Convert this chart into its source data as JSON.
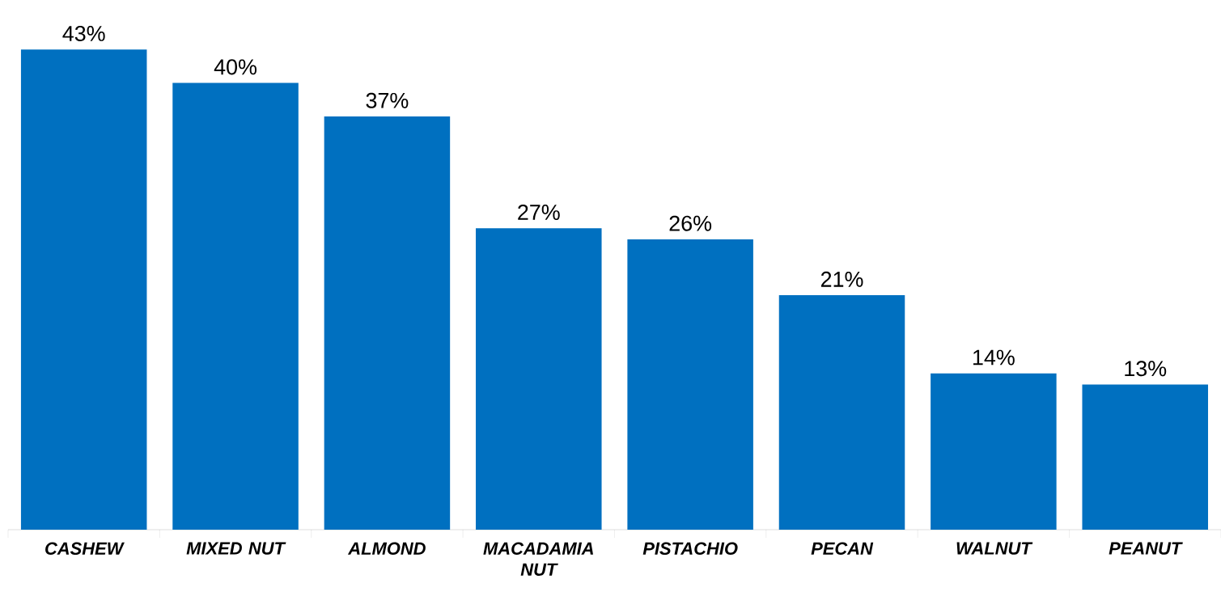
{
  "chart_data": {
    "type": "bar",
    "categories": [
      "CASHEW",
      "MIXED NUT",
      "ALMOND",
      "MACADAMIA NUT",
      "PISTACHIO",
      "PECAN",
      "WALNUT",
      "PEANUT"
    ],
    "values": [
      43,
      40,
      37,
      27,
      26,
      21,
      14,
      13
    ],
    "value_labels": [
      "43%",
      "40%",
      "37%",
      "27%",
      "26%",
      "21%",
      "14%",
      "13%"
    ],
    "color": "#0070c0"
  }
}
